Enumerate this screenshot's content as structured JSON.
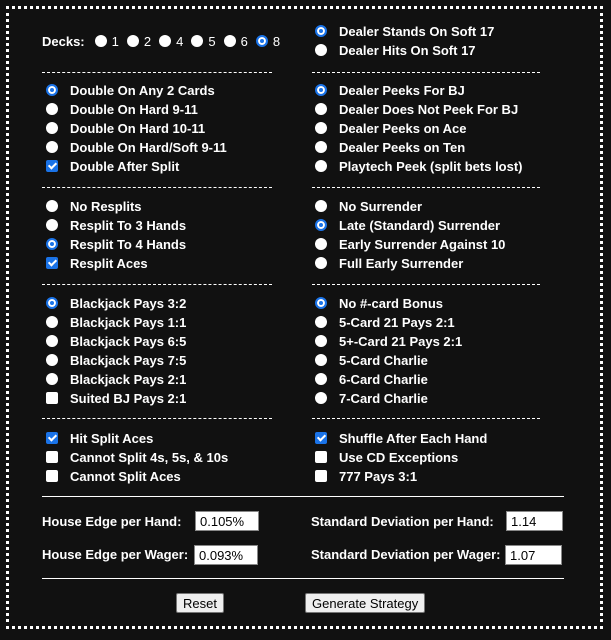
{
  "decks": {
    "label": "Decks:",
    "options": [
      "1",
      "2",
      "4",
      "5",
      "6",
      "8"
    ],
    "selected": "8"
  },
  "left_sections": [
    [
      {
        "type": "radio",
        "label": "Double On Any 2 Cards",
        "checked": true
      },
      {
        "type": "radio",
        "label": "Double On Hard 9-11",
        "checked": false
      },
      {
        "type": "radio",
        "label": "Double On Hard 10-11",
        "checked": false
      },
      {
        "type": "radio",
        "label": "Double On Hard/Soft 9-11",
        "checked": false
      },
      {
        "type": "check",
        "label": "Double After Split",
        "checked": true
      }
    ],
    [
      {
        "type": "radio",
        "label": "No Resplits",
        "checked": false
      },
      {
        "type": "radio",
        "label": "Resplit To 3 Hands",
        "checked": false
      },
      {
        "type": "radio",
        "label": "Resplit To 4 Hands",
        "checked": true
      },
      {
        "type": "check",
        "label": "Resplit Aces",
        "checked": true
      }
    ],
    [
      {
        "type": "radio",
        "label": "Blackjack Pays 3:2",
        "checked": true
      },
      {
        "type": "radio",
        "label": "Blackjack Pays 1:1",
        "checked": false
      },
      {
        "type": "radio",
        "label": "Blackjack Pays 6:5",
        "checked": false
      },
      {
        "type": "radio",
        "label": "Blackjack Pays 7:5",
        "checked": false
      },
      {
        "type": "radio",
        "label": "Blackjack Pays 2:1",
        "checked": false
      },
      {
        "type": "check",
        "label": "Suited BJ Pays 2:1",
        "checked": false
      }
    ],
    [
      {
        "type": "check",
        "label": "Hit Split Aces",
        "checked": true
      },
      {
        "type": "check",
        "label": "Cannot Split 4s, 5s, & 10s",
        "checked": false
      },
      {
        "type": "check",
        "label": "Cannot Split Aces",
        "checked": false
      }
    ]
  ],
  "right_sections": [
    [
      {
        "type": "radio",
        "label": "Dealer Stands On Soft 17",
        "checked": true
      },
      {
        "type": "radio",
        "label": "Dealer Hits On Soft 17",
        "checked": false
      }
    ],
    [
      {
        "type": "radio",
        "label": "Dealer Peeks For BJ",
        "checked": true
      },
      {
        "type": "radio",
        "label": "Dealer Does Not Peek For BJ",
        "checked": false
      },
      {
        "type": "radio",
        "label": "Dealer Peeks on Ace",
        "checked": false
      },
      {
        "type": "radio",
        "label": "Dealer Peeks on Ten",
        "checked": false
      },
      {
        "type": "radio",
        "label": "Playtech Peek (split bets lost)",
        "checked": false
      }
    ],
    [
      {
        "type": "radio",
        "label": "No Surrender",
        "checked": false
      },
      {
        "type": "radio",
        "label": "Late (Standard) Surrender",
        "checked": true
      },
      {
        "type": "radio",
        "label": "Early Surrender Against 10",
        "checked": false
      },
      {
        "type": "radio",
        "label": "Full Early Surrender",
        "checked": false
      }
    ],
    [
      {
        "type": "radio",
        "label": "No #-card Bonus",
        "checked": true
      },
      {
        "type": "radio",
        "label": "5-Card 21 Pays 2:1",
        "checked": false
      },
      {
        "type": "radio",
        "label": "5+-Card 21 Pays 2:1",
        "checked": false
      },
      {
        "type": "radio",
        "label": "5-Card Charlie",
        "checked": false
      },
      {
        "type": "radio",
        "label": "6-Card Charlie",
        "checked": false
      },
      {
        "type": "radio",
        "label": "7-Card Charlie",
        "checked": false
      }
    ],
    [
      {
        "type": "check",
        "label": "Shuffle After Each Hand",
        "checked": true
      },
      {
        "type": "check",
        "label": "Use CD Exceptions",
        "checked": false
      },
      {
        "type": "check",
        "label": "777 Pays 3:1",
        "checked": false
      }
    ]
  ],
  "results": {
    "he_hand_label": "House Edge per Hand:",
    "he_hand": "0.105%",
    "he_wager_label": "House Edge per Wager:",
    "he_wager": "0.093%",
    "sd_hand_label": "Standard Deviation per Hand:",
    "sd_hand": "1.14",
    "sd_wager_label": "Standard Deviation per Wager:",
    "sd_wager": "1.07"
  },
  "buttons": {
    "reset": "Reset",
    "generate": "Generate Strategy"
  },
  "accent": "#1a73e8"
}
